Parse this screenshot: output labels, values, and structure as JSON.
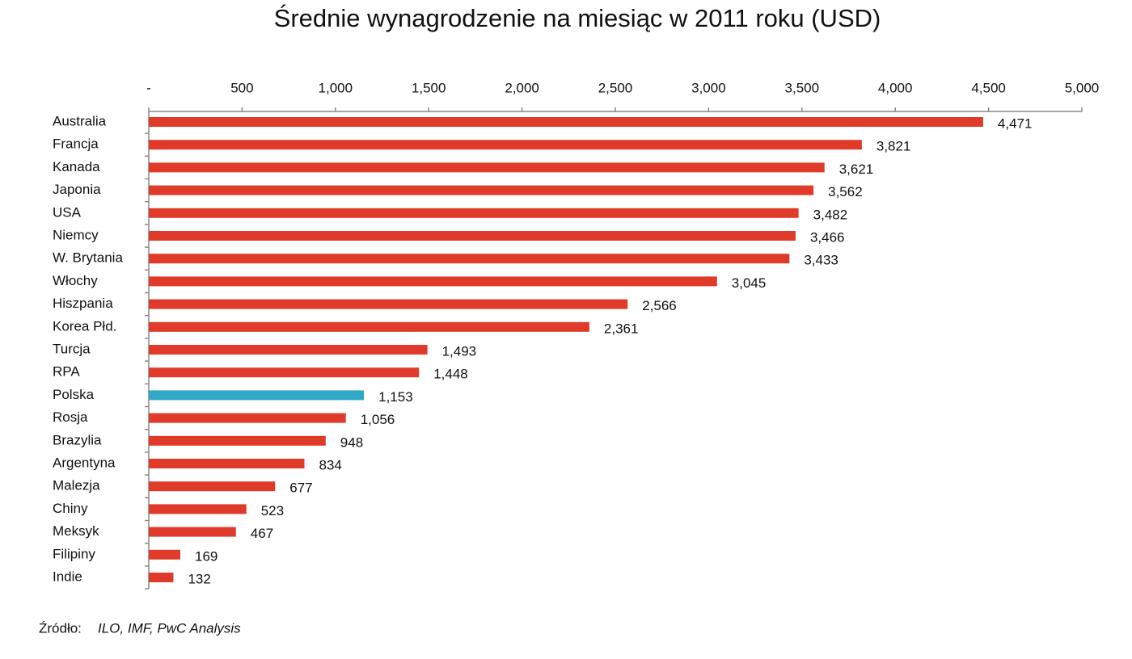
{
  "chart_data": {
    "type": "bar",
    "orientation": "horizontal",
    "title": "Średnie wynagrodzenie na miesiąc w 2011 roku (USD)",
    "categories": [
      "Australia",
      "Francja",
      "Kanada",
      "Japonia",
      "USA",
      "Niemcy",
      "W. Brytania",
      "Włochy",
      "Hiszpania",
      "Korea Płd.",
      "Turcja",
      "RPA",
      "Polska",
      "Rosja",
      "Brazylia",
      "Argentyna",
      "Malezja",
      "Chiny",
      "Meksyk",
      "Filipiny",
      "Indie"
    ],
    "values": [
      4471,
      3821,
      3621,
      3562,
      3482,
      3466,
      3433,
      3045,
      2566,
      2361,
      1493,
      1448,
      1153,
      1056,
      948,
      834,
      677,
      523,
      467,
      169,
      132
    ],
    "value_labels": [
      "4,471",
      "3,821",
      "3,621",
      "3,562",
      "3,482",
      "3,466",
      "3,433",
      "3,045",
      "2,566",
      "2,361",
      "1,493",
      "1,448",
      "1,153",
      "1,056",
      "948",
      "834",
      "677",
      "523",
      "467",
      "169",
      "132"
    ],
    "colors": [
      "#e03a2a",
      "#e03a2a",
      "#e03a2a",
      "#e03a2a",
      "#e03a2a",
      "#e03a2a",
      "#e03a2a",
      "#e03a2a",
      "#e03a2a",
      "#e03a2a",
      "#e03a2a",
      "#e03a2a",
      "#2fa8c6",
      "#e03a2a",
      "#e03a2a",
      "#e03a2a",
      "#e03a2a",
      "#e03a2a",
      "#e03a2a",
      "#e03a2a",
      "#e03a2a"
    ],
    "xlim": [
      0,
      5000
    ],
    "xticks": [
      {
        "value": 0,
        "label": "-"
      },
      500,
      {
        "value": 1000,
        "label": "1,000"
      },
      {
        "value": 1500,
        "label": "1,500"
      },
      {
        "value": 2000,
        "label": "2,000"
      },
      {
        "value": 2500,
        "label": "2,500"
      },
      {
        "value": 3000,
        "label": "3,000"
      },
      {
        "value": 3500,
        "label": "3,500"
      },
      {
        "value": 4000,
        "label": "4,000"
      },
      {
        "value": 4500,
        "label": "4,500"
      },
      {
        "value": 5000,
        "label": "5,000"
      }
    ],
    "source_label": "Źródło:",
    "source": "ILO, IMF, PwC Analysis"
  }
}
